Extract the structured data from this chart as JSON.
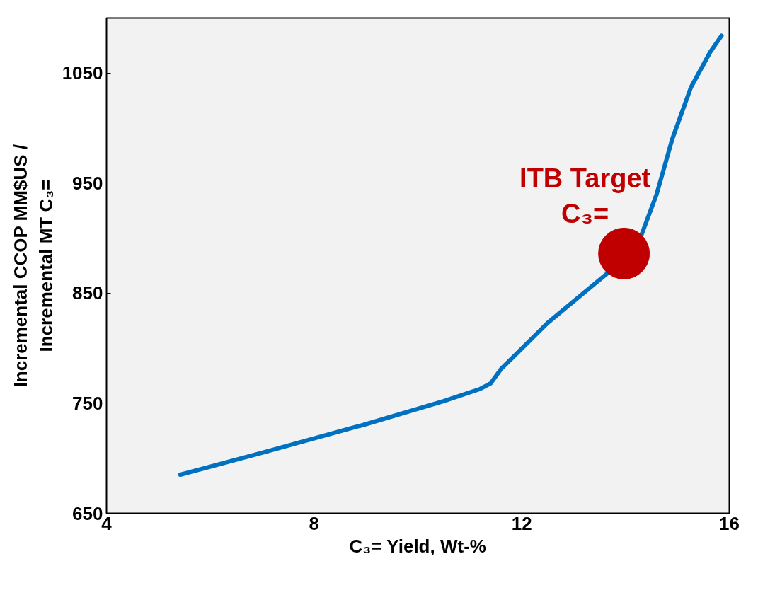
{
  "chart_data": {
    "type": "line",
    "xlabel": "C₃= Yield, Wt-%",
    "ylabel": "Incremental CCOP MM$US /\nIncremental MT C₃=",
    "xlim": [
      4,
      16
    ],
    "xticks": [
      4,
      8,
      12,
      16
    ],
    "ylim": [
      650,
      1100
    ],
    "yticks": [
      650,
      750,
      850,
      950,
      1050
    ],
    "grid": false,
    "series": [
      {
        "color": "#0070c0",
        "x": [
          5.42,
          7.0,
          9.0,
          10.5,
          11.2,
          11.4,
          11.6,
          12.5,
          13.7,
          14.3,
          14.6,
          14.9,
          15.26,
          15.63,
          15.85
        ],
        "values": [
          685,
          705,
          731,
          752,
          763,
          768,
          781,
          823,
          870,
          902,
          940,
          990,
          1037,
          1069,
          1084
        ]
      },
      {
        "type": "scatter",
        "color": "#c00000",
        "marker": "circle",
        "x": [
          13.97
        ],
        "values": [
          886
        ]
      }
    ],
    "annotations": [
      {
        "text": "ITB Target\nC₃=",
        "x": 13.97,
        "y": 886
      }
    ]
  }
}
